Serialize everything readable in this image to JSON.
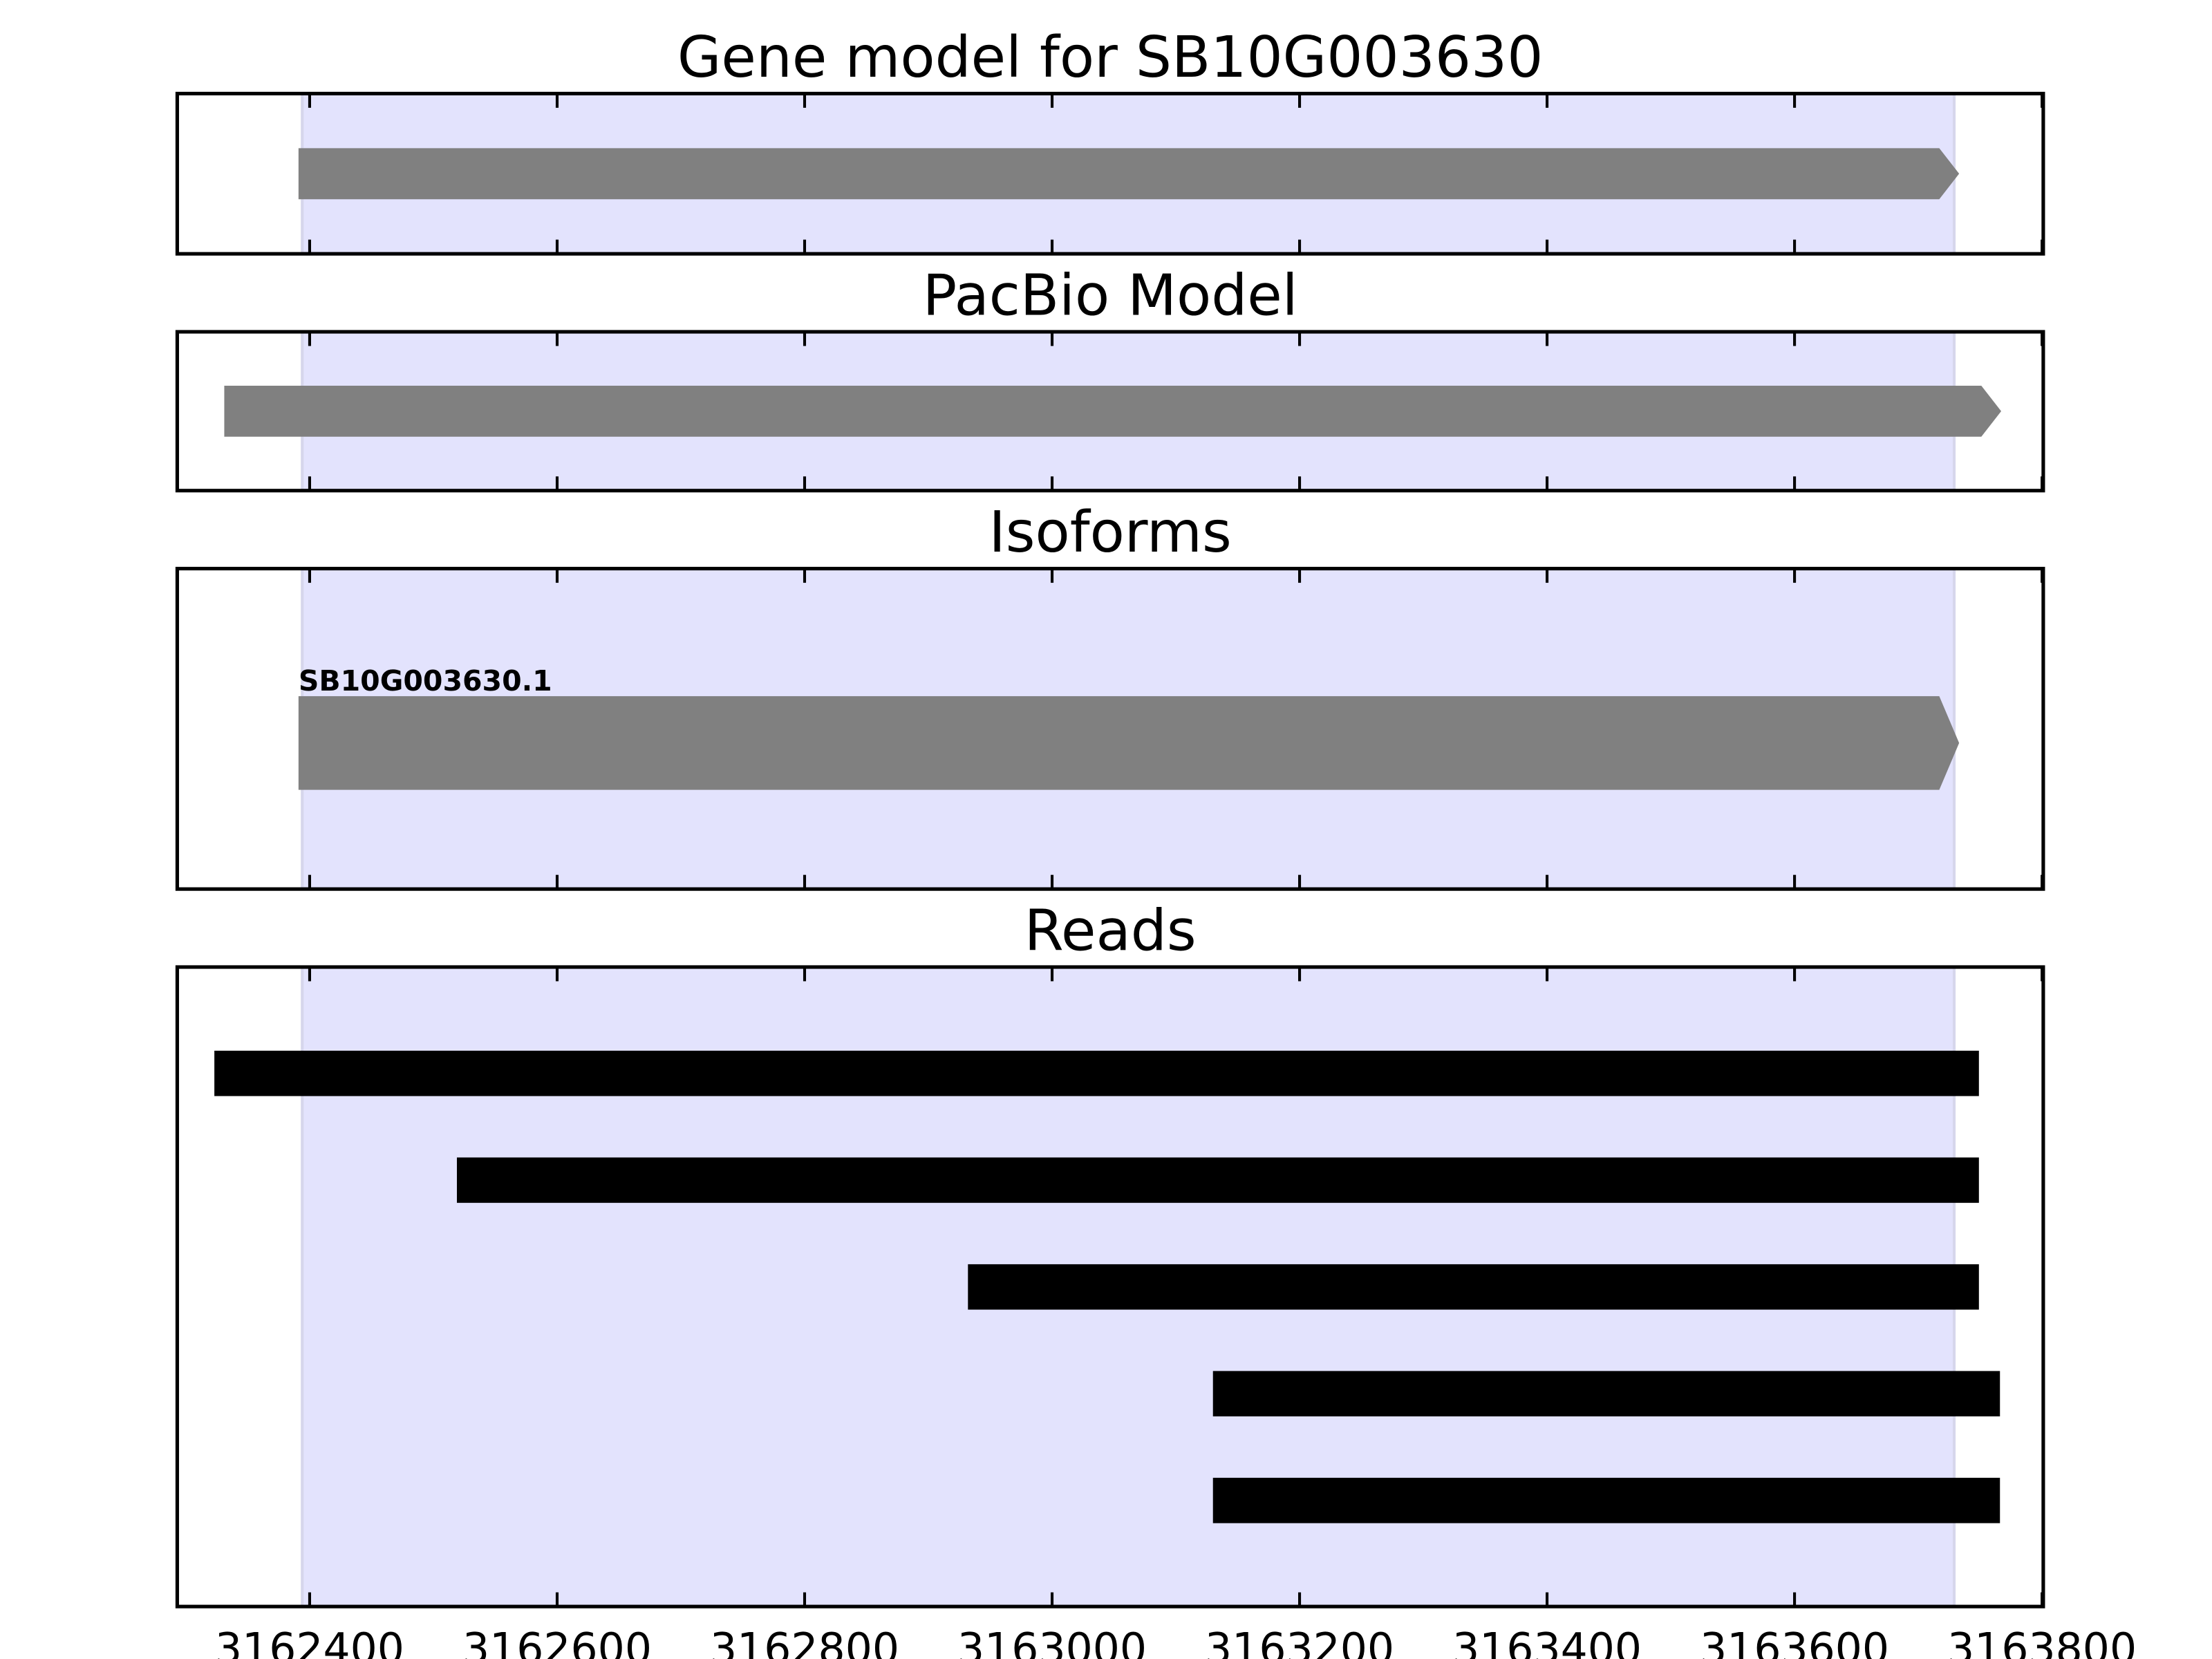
{
  "chart_data": [
    {
      "type": "gene-track",
      "title": "Gene model for SB10G003630",
      "xlim": [
        3162293,
        3163801
      ],
      "highlight_region": [
        3162394,
        3163729
      ],
      "features": [
        {
          "start": 3162391,
          "end": 3163733,
          "strand": "+",
          "color": "#808080"
        }
      ]
    },
    {
      "type": "gene-track",
      "title": "PacBio Model",
      "xlim": [
        3162293,
        3163801
      ],
      "highlight_region": [
        3162394,
        3163729
      ],
      "features": [
        {
          "start": 3162331,
          "end": 3163767,
          "strand": "+",
          "color": "#808080"
        }
      ]
    },
    {
      "type": "gene-track",
      "title": "Isoforms",
      "xlim": [
        3162293,
        3163801
      ],
      "highlight_region": [
        3162394,
        3163729
      ],
      "features": [
        {
          "label": "SB10G003630.1",
          "start": 3162391,
          "end": 3163733,
          "strand": "+",
          "color": "#808080"
        }
      ]
    },
    {
      "type": "bar",
      "orientation": "horizontal",
      "title": "Reads",
      "xlim": [
        3162293,
        3163801
      ],
      "highlight_region": [
        3162394,
        3163729
      ],
      "xticks": [
        3162400,
        3162600,
        3162800,
        3163000,
        3163200,
        3163400,
        3163600,
        3163800
      ],
      "reads": [
        {
          "start": 3162323,
          "end": 3163749
        },
        {
          "start": 3162519,
          "end": 3163749
        },
        {
          "start": 3162932,
          "end": 3163749
        },
        {
          "start": 3163130,
          "end": 3163766
        },
        {
          "start": 3163130,
          "end": 3163766
        }
      ],
      "read_color": "#000000"
    }
  ],
  "colors": {
    "highlight": "#e3e3fd",
    "feature": "#808080",
    "read": "#000000"
  }
}
